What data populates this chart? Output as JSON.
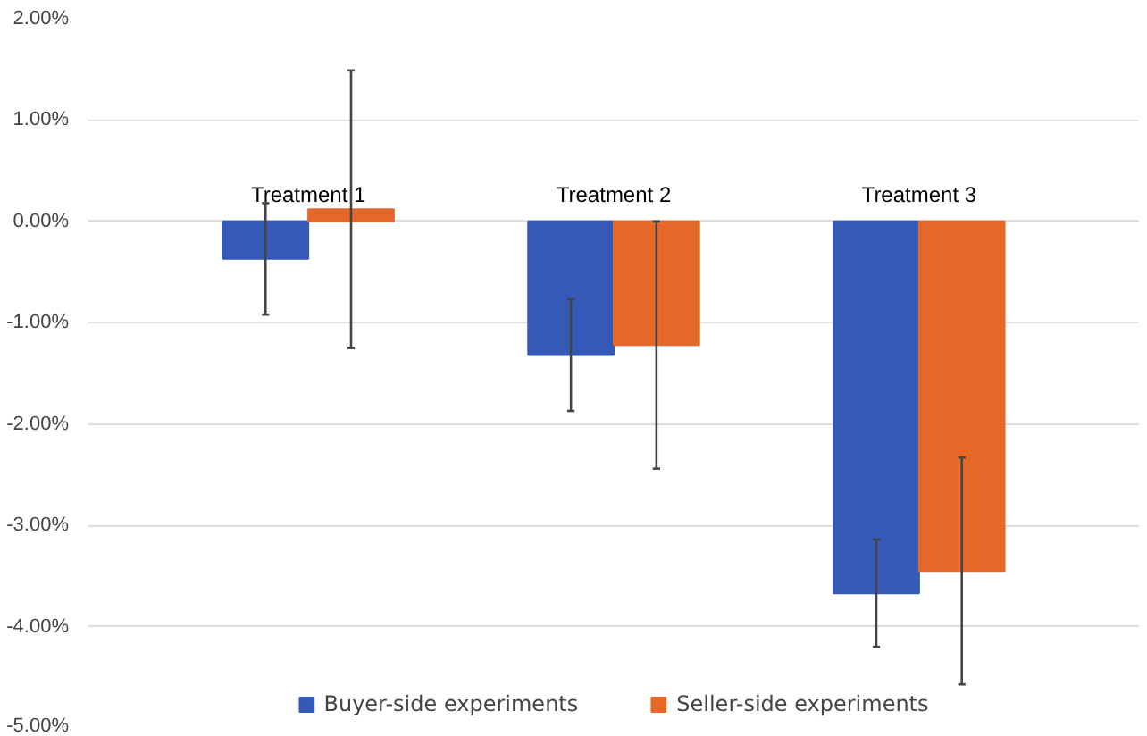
{
  "chart_data": {
    "type": "bar",
    "categories": [
      "Treatment 1",
      "Treatment 2",
      "Treatment 3"
    ],
    "series": [
      {
        "name": "Buyer-side experiments",
        "color": "#3559b7",
        "values": [
          -0.37,
          -1.32,
          -3.67
        ],
        "errors": [
          0.55,
          0.55,
          0.53
        ]
      },
      {
        "name": "Seller-side experiments",
        "color": "#e56828",
        "values": [
          0.12,
          -1.22,
          -3.45
        ],
        "errors": [
          1.37,
          1.22,
          1.12
        ]
      }
    ],
    "ylim": [
      -5,
      2
    ],
    "yticks": [
      {
        "value": 2,
        "label": "2.00%"
      },
      {
        "value": 1,
        "label": "1.00%"
      },
      {
        "value": 0,
        "label": "0.00%"
      },
      {
        "value": -1,
        "label": "-1.00%"
      },
      {
        "value": -2,
        "label": "-2.00%"
      },
      {
        "value": -3,
        "label": "-3.00%"
      },
      {
        "value": -4,
        "label": "-4.00%"
      },
      {
        "value": -5,
        "label": "-5.00%"
      }
    ],
    "grid": "y",
    "legend": "bottom"
  }
}
